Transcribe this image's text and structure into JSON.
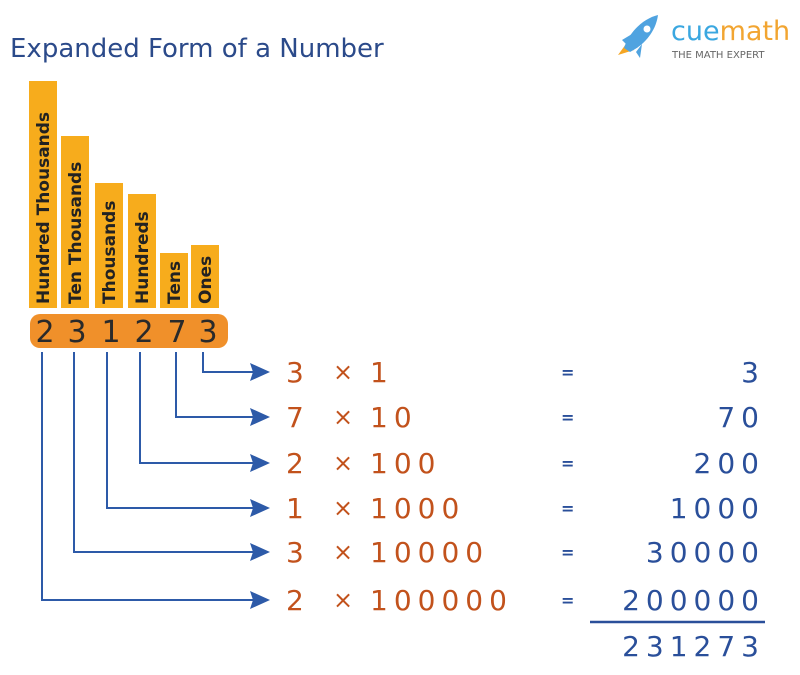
{
  "title": "Expanded Form of a Number",
  "logo": {
    "brand_part1": "cue",
    "brand_part2": "math",
    "tagline": "THE MATH EXPERT",
    "icon": "rocket-icon"
  },
  "colors": {
    "bar": "#f7ac1c",
    "pill": "#f0902a",
    "arrow": "#2d5aa8",
    "expression": "#c2521c",
    "result": "#2a4f9a",
    "title": "#2b4a8a"
  },
  "place_values": [
    "Hundred Thousands",
    "Ten Thousands",
    "Thousands",
    "Hundreds",
    "Tens",
    "Ones"
  ],
  "digits": [
    "2",
    "3",
    "1",
    "2",
    "7",
    "3"
  ],
  "rows": [
    {
      "digit": "3",
      "times": "×",
      "multiplier": "1",
      "equals": "=",
      "result": "3"
    },
    {
      "digit": "7",
      "times": "×",
      "multiplier": "10",
      "equals": "=",
      "result": "70"
    },
    {
      "digit": "2",
      "times": "×",
      "multiplier": "100",
      "equals": "=",
      "result": "200"
    },
    {
      "digit": "1",
      "times": "×",
      "multiplier": "1000",
      "equals": "=",
      "result": "1000"
    },
    {
      "digit": "3",
      "times": "×",
      "multiplier": "10000",
      "equals": "=",
      "result": "30000"
    },
    {
      "digit": "2",
      "times": "×",
      "multiplier": "100000",
      "equals": "=",
      "result": "200000"
    }
  ],
  "total": "231273"
}
